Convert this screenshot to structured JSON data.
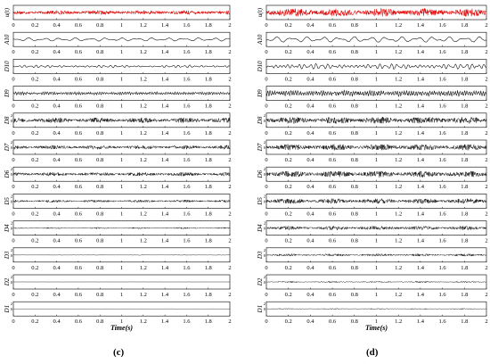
{
  "chart_data": [
    {
      "type": "line",
      "panel_label": "(c)",
      "xlabel": "Time(s)",
      "xlim": [
        0,
        2
      ],
      "x_ticks": [
        "0",
        "0.2",
        "0.4",
        "0.6",
        "0.8",
        "1",
        "1.2",
        "1.4",
        "1.6",
        "1.8",
        "2"
      ],
      "subplots": [
        {
          "ylabel": "u(t)",
          "color": "#e00000",
          "amplitude": 0.35,
          "character": "red-noise",
          "ticks": []
        },
        {
          "ylabel": "A10",
          "color": "#000000",
          "amplitude": 0.22,
          "character": "slow",
          "ticks": []
        },
        {
          "ylabel": "D10",
          "color": "#000000",
          "amplitude": 0.22,
          "character": "medium",
          "ticks": []
        },
        {
          "ylabel": "D9",
          "color": "#000000",
          "amplitude": 0.3,
          "character": "fast",
          "ticks": []
        },
        {
          "ylabel": "D8",
          "color": "#000000",
          "amplitude": 0.45,
          "character": "dense",
          "ticks": [
            "2",
            "0"
          ]
        },
        {
          "ylabel": "D7",
          "color": "#000000",
          "amplitude": 0.35,
          "character": "dense",
          "ticks": [
            "2",
            "0"
          ]
        },
        {
          "ylabel": "D6",
          "color": "#000000",
          "amplitude": 0.33,
          "character": "dense",
          "ticks": [
            "2",
            "0"
          ]
        },
        {
          "ylabel": "D5",
          "color": "#000000",
          "amplitude": 0.22,
          "character": "dense",
          "ticks": [
            "2",
            "0"
          ]
        },
        {
          "ylabel": "D4",
          "color": "#000000",
          "amplitude": 0.12,
          "character": "dense",
          "ticks": [
            "2",
            "0"
          ]
        },
        {
          "ylabel": "D3",
          "color": "#000000",
          "amplitude": 0.06,
          "character": "dense",
          "ticks": [
            "2",
            "0"
          ]
        },
        {
          "ylabel": "D2",
          "color": "#000000",
          "amplitude": 0.02,
          "character": "dense",
          "ticks": [
            "2",
            "0"
          ]
        },
        {
          "ylabel": "D1",
          "color": "#000000",
          "amplitude": 0.015,
          "character": "dense",
          "ticks": [
            "2",
            "0"
          ]
        }
      ]
    },
    {
      "type": "line",
      "panel_label": "(d)",
      "xlabel": "Time(s)",
      "xlim": [
        0,
        2
      ],
      "x_ticks": [
        "0",
        "0.2",
        "0.4",
        "0.6",
        "0.8",
        "1",
        "1.2",
        "1.4",
        "1.6",
        "1.8",
        "2"
      ],
      "subplots": [
        {
          "ylabel": "u(t)",
          "color": "#e00000",
          "amplitude": 0.7,
          "character": "red-noise",
          "ticks": []
        },
        {
          "ylabel": "A10",
          "color": "#000000",
          "amplitude": 0.38,
          "character": "slow",
          "ticks": []
        },
        {
          "ylabel": "D10",
          "color": "#000000",
          "amplitude": 0.48,
          "character": "medium",
          "ticks": []
        },
        {
          "ylabel": "D9",
          "color": "#000000",
          "amplitude": 0.55,
          "character": "fast",
          "ticks": []
        },
        {
          "ylabel": "D8",
          "color": "#000000",
          "amplitude": 0.6,
          "character": "dense",
          "ticks": [
            "2",
            "0"
          ]
        },
        {
          "ylabel": "D7",
          "color": "#000000",
          "amplitude": 0.55,
          "character": "dense",
          "ticks": [
            "2",
            "0"
          ]
        },
        {
          "ylabel": "D6",
          "color": "#000000",
          "amplitude": 0.55,
          "character": "dense",
          "ticks": [
            "2",
            "0"
          ]
        },
        {
          "ylabel": "D5",
          "color": "#000000",
          "amplitude": 0.45,
          "character": "dense",
          "ticks": [
            "2",
            "0"
          ]
        },
        {
          "ylabel": "D4",
          "color": "#000000",
          "amplitude": 0.35,
          "character": "dense",
          "ticks": [
            "2",
            "0"
          ]
        },
        {
          "ylabel": "D3",
          "color": "#000000",
          "amplitude": 0.22,
          "character": "dense",
          "ticks": [
            "2",
            "0"
          ]
        },
        {
          "ylabel": "D2",
          "color": "#000000",
          "amplitude": 0.12,
          "character": "dense",
          "ticks": [
            "2",
            "0"
          ]
        },
        {
          "ylabel": "D1",
          "color": "#000000",
          "amplitude": 0.08,
          "character": "dense",
          "ticks": [
            "2",
            "0"
          ]
        }
      ]
    }
  ]
}
